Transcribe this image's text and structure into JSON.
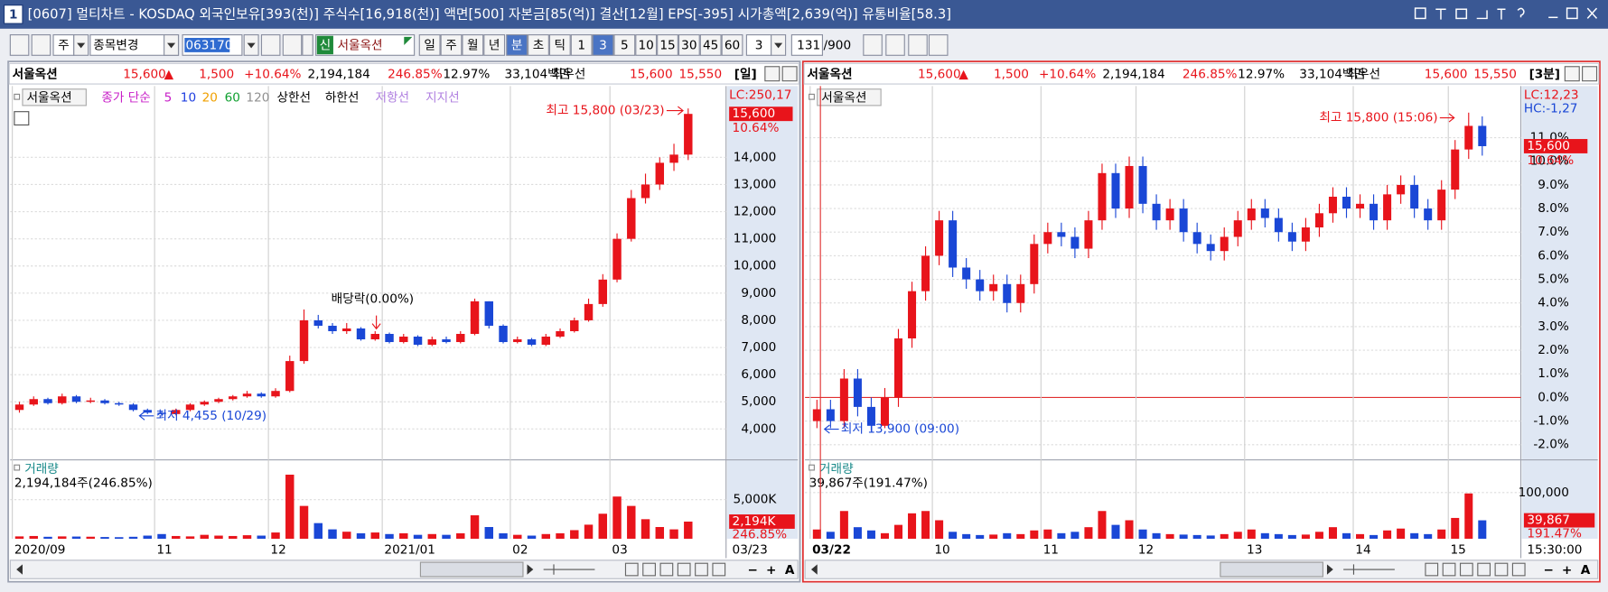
{
  "title_bar": {
    "number": "1",
    "text": "[0607] 멀티차트 - KOSDAQ 외국인보유[393(천)] 주식수[16,918(천)] 액면[500] 자본금[85(억)] 결산[12월] EPS[-395] 시가총액[2,639(억)] 유통비율[58.3]"
  },
  "toolbar": {
    "market": "주",
    "change": "종목변경",
    "code": "063170",
    "new": "신",
    "name": "서울옥션",
    "periods": [
      "일",
      "주",
      "월",
      "년",
      "분",
      "초",
      "틱"
    ],
    "intervals": [
      "1",
      "3",
      "5",
      "10",
      "15",
      "30",
      "45",
      "60"
    ],
    "count": "3",
    "range": "131",
    "range_total": "/900"
  },
  "panels": [
    {
      "header": {
        "name": "서울옥션",
        "price": "15,600",
        "arrow": "▲",
        "change": "1,500",
        "change_pct": "+10.64%",
        "volume": "2,194,184",
        "volume_pct": "246.85%",
        "turnover": "12.97%",
        "amount": "33,104백만",
        "best_label": "최우선",
        "ask": "15,600",
        "bid": "15,550",
        "period": "[일]"
      },
      "legend": [
        {
          "label": "서울옥션",
          "color": "#000000"
        },
        {
          "label": "종가 단순",
          "color": "#c81ec8"
        },
        {
          "label": "5",
          "color": "#c81ec8"
        },
        {
          "label": "10",
          "color": "#2040e0"
        },
        {
          "label": "20",
          "color": "#f0a000"
        },
        {
          "label": "60",
          "color": "#10a030"
        },
        {
          "label": "120",
          "color": "#909090"
        },
        {
          "label": "상한선",
          "color": "#000000"
        },
        {
          "label": "하한선",
          "color": "#000000"
        },
        {
          "label": "저항선",
          "color": "#b080e0"
        },
        {
          "label": "지지선",
          "color": "#b080e0"
        }
      ],
      "annotations": {
        "high": "최고 15,800 (03/23)",
        "low": "최저 4,455 (10/29)",
        "dividend": "배당락(0.00%)"
      },
      "axis": {
        "info": [
          "LC:250,17"
        ],
        "price": "15,600",
        "change": "10.64%",
        "end_label": "03/23"
      },
      "chart_data": {
        "type": "candlestick",
        "categories": [
          "2020/09",
          null,
          null,
          null,
          null,
          null,
          null,
          null,
          null,
          null,
          "11",
          null,
          null,
          null,
          null,
          null,
          null,
          null,
          "12",
          null,
          null,
          null,
          null,
          null,
          null,
          null,
          "2021/01",
          null,
          null,
          null,
          null,
          null,
          null,
          null,
          null,
          "02",
          null,
          null,
          null,
          null,
          null,
          null,
          "03",
          null,
          null,
          null,
          null,
          null
        ],
        "open": [
          4700,
          4900,
          5100,
          4950,
          5200,
          5000,
          5050,
          4950,
          4900,
          4700,
          4600,
          4550,
          4700,
          4900,
          5000,
          5100,
          5200,
          5300,
          5200,
          5400,
          6500,
          8000,
          7800,
          7600,
          7700,
          7300,
          7500,
          7200,
          7400,
          7100,
          7300,
          7200,
          7500,
          8700,
          7800,
          7200,
          7300,
          7100,
          7400,
          7600,
          8000,
          8600,
          9500,
          11000,
          12500,
          13000,
          13800,
          14100
        ],
        "high": [
          5000,
          5200,
          5150,
          5300,
          5250,
          5150,
          5100,
          5000,
          4950,
          4750,
          4650,
          4750,
          4950,
          5050,
          5150,
          5250,
          5400,
          5350,
          5500,
          6700,
          8400,
          8200,
          7900,
          7900,
          7750,
          7600,
          7550,
          7500,
          7450,
          7400,
          7400,
          7600,
          8800,
          8700,
          7850,
          7400,
          7350,
          7500,
          7700,
          8100,
          8800,
          9700,
          11200,
          12800,
          13400,
          14000,
          14500,
          15800
        ],
        "low": [
          4600,
          4850,
          4900,
          4900,
          4950,
          4950,
          4900,
          4850,
          4650,
          4550,
          4455,
          4500,
          4650,
          4850,
          4950,
          5050,
          5150,
          5150,
          5150,
          5350,
          6400,
          7700,
          7500,
          7500,
          7250,
          7250,
          7150,
          7150,
          7050,
          7050,
          7150,
          7150,
          7450,
          7700,
          7150,
          7150,
          7050,
          7050,
          7350,
          7550,
          7950,
          8500,
          9400,
          10900,
          12300,
          12800,
          13500,
          13900
        ],
        "close": [
          4900,
          5100,
          4950,
          5200,
          5000,
          5050,
          4950,
          4900,
          4700,
          4600,
          4550,
          4700,
          4900,
          5000,
          5100,
          5200,
          5300,
          5200,
          5400,
          6500,
          8000,
          7800,
          7600,
          7700,
          7300,
          7500,
          7200,
          7400,
          7100,
          7300,
          7200,
          7500,
          8700,
          7800,
          7200,
          7300,
          7100,
          7400,
          7600,
          8000,
          8600,
          9500,
          11000,
          12500,
          13000,
          13800,
          14100,
          15600
        ],
        "up_color": "#e8141b",
        "down_color": "#1a47d6",
        "ylim": [
          2900,
          16550
        ],
        "yticks": [
          {
            "value": 4000,
            "label": "4,000"
          },
          {
            "value": 5000,
            "label": "5,000"
          },
          {
            "value": 6000,
            "label": "6,000"
          },
          {
            "value": 7000,
            "label": "7,000"
          },
          {
            "value": 8000,
            "label": "8,000"
          },
          {
            "value": 9000,
            "label": "9,000"
          },
          {
            "value": 10000,
            "label": "10,000"
          },
          {
            "value": 11000,
            "label": "11,000"
          },
          {
            "value": 12000,
            "label": "12,000"
          },
          {
            "value": 13000,
            "label": "13,000"
          },
          {
            "value": 14000,
            "label": "14,000"
          }
        ],
        "grid": true
      },
      "volume_chart": {
        "type": "bar",
        "title": "거래량",
        "summary": "2,194,184주(246.85%)",
        "values": [
          300,
          350,
          250,
          300,
          280,
          260,
          220,
          200,
          250,
          400,
          600,
          350,
          300,
          500,
          400,
          350,
          450,
          400,
          800,
          8200,
          4200,
          2000,
          1200,
          900,
          700,
          800,
          600,
          700,
          500,
          600,
          500,
          700,
          3000,
          1500,
          700,
          500,
          400,
          600,
          700,
          1100,
          1800,
          3200,
          5400,
          4200,
          2500,
          1500,
          1200,
          2194
        ],
        "ylim": [
          0,
          9700
        ],
        "yticks": [
          {
            "value": 5000,
            "label": "5,000K"
          }
        ],
        "current_label": "2,194K",
        "current_pct": "246.85%"
      },
      "tools": [
        "−",
        "+",
        "A"
      ]
    },
    {
      "header": {
        "name": "서울옥션",
        "price": "15,600",
        "arrow": "▲",
        "change": "1,500",
        "change_pct": "+10.64%",
        "volume": "2,194,184",
        "volume_pct": "246.85%",
        "turnover": "12.97%",
        "amount": "33,104백만",
        "best_label": "최우선",
        "ask": "15,600",
        "bid": "15,550",
        "period": "[3분]"
      },
      "legend": [
        {
          "label": "서울옥션",
          "color": "#000000"
        }
      ],
      "annotations": {
        "high": "최고 15,800 (15:06)",
        "low": "최저 13,900 (09:00)"
      },
      "axis": {
        "info": [
          "LC:12,23",
          "HC:-1,27"
        ],
        "price": "15,600",
        "change": "10.64%",
        "end_label": "15:30:00"
      },
      "chart_data": {
        "type": "candlestick",
        "categories": [
          "03/22",
          null,
          null,
          null,
          null,
          null,
          null,
          null,
          null,
          "10",
          null,
          null,
          null,
          null,
          null,
          null,
          null,
          "11",
          null,
          null,
          null,
          null,
          null,
          null,
          "12",
          null,
          null,
          null,
          null,
          null,
          null,
          null,
          "13",
          null,
          null,
          null,
          null,
          null,
          null,
          null,
          "14",
          null,
          null,
          null,
          null,
          null,
          null,
          "15",
          null,
          null
        ],
        "open": [
          -1.0,
          -0.5,
          -1.0,
          0.8,
          -0.4,
          -1.2,
          0.0,
          2.5,
          4.5,
          6.0,
          7.5,
          5.5,
          5.0,
          4.5,
          4.8,
          4.0,
          4.8,
          6.5,
          7.0,
          6.8,
          6.3,
          7.5,
          9.5,
          8.0,
          9.8,
          8.2,
          7.5,
          8.0,
          7.0,
          6.5,
          6.2,
          6.8,
          7.5,
          8.0,
          7.6,
          7.0,
          6.6,
          7.2,
          7.8,
          8.5,
          8.0,
          8.2,
          7.5,
          8.6,
          9.0,
          8.0,
          7.5,
          8.8,
          10.5,
          11.5
        ],
        "high": [
          -0.1,
          -0.1,
          1.2,
          1.2,
          0.0,
          0.4,
          2.9,
          4.9,
          6.4,
          7.9,
          7.9,
          5.9,
          5.4,
          5.2,
          5.2,
          5.2,
          6.9,
          7.4,
          7.4,
          7.2,
          7.9,
          9.9,
          9.9,
          10.2,
          10.2,
          8.6,
          8.4,
          8.4,
          7.4,
          6.9,
          7.2,
          7.9,
          8.4,
          8.4,
          8.0,
          7.4,
          7.6,
          8.2,
          8.9,
          8.9,
          8.6,
          8.6,
          9.0,
          9.4,
          9.4,
          8.4,
          9.2,
          10.9,
          12.06,
          11.9
        ],
        "low": [
          -1.3,
          -1.3,
          -1.3,
          -0.8,
          -1.42,
          -1.3,
          -0.4,
          2.1,
          4.1,
          5.6,
          5.1,
          4.6,
          4.1,
          4.1,
          3.6,
          3.6,
          4.4,
          6.1,
          6.4,
          5.9,
          5.9,
          7.1,
          7.6,
          7.6,
          7.8,
          7.1,
          7.1,
          6.6,
          6.1,
          5.8,
          5.8,
          6.4,
          7.1,
          7.2,
          6.6,
          6.2,
          6.2,
          6.8,
          7.4,
          7.6,
          7.6,
          7.1,
          7.1,
          8.2,
          7.6,
          7.1,
          7.1,
          8.4,
          10.1,
          10.24
        ],
        "close": [
          -0.5,
          -1.0,
          0.8,
          -0.4,
          -1.2,
          0.0,
          2.5,
          4.5,
          6.0,
          7.5,
          5.5,
          5.0,
          4.5,
          4.8,
          4.0,
          4.8,
          6.5,
          7.0,
          6.8,
          6.3,
          7.5,
          9.5,
          8.0,
          9.8,
          8.2,
          7.5,
          8.0,
          7.0,
          6.5,
          6.2,
          6.8,
          7.5,
          8.0,
          7.6,
          7.0,
          6.6,
          7.2,
          7.8,
          8.5,
          8.0,
          8.2,
          7.5,
          8.6,
          9.0,
          8.0,
          7.5,
          8.8,
          10.5,
          11.5,
          10.64
        ],
        "up_color": "#e8141b",
        "down_color": "#1a47d6",
        "ylim": [
          -2.6,
          13.1
        ],
        "yticks": [
          {
            "value": -2,
            "label": "-2.0%"
          },
          {
            "value": -1,
            "label": "-1.0%"
          },
          {
            "value": 0,
            "label": "0.0%"
          },
          {
            "value": 1,
            "label": "1.0%"
          },
          {
            "value": 2,
            "label": "2.0%"
          },
          {
            "value": 3,
            "label": "3.0%"
          },
          {
            "value": 4,
            "label": "4.0%"
          },
          {
            "value": 5,
            "label": "5.0%"
          },
          {
            "value": 6,
            "label": "6.0%"
          },
          {
            "value": 7,
            "label": "7.0%"
          },
          {
            "value": 8,
            "label": "8.0%"
          },
          {
            "value": 9,
            "label": "9.0%"
          },
          {
            "value": 10,
            "label": "10.0%"
          },
          {
            "value": 11,
            "label": "11.0%"
          }
        ],
        "grid": true
      },
      "volume_chart": {
        "type": "bar",
        "title": "거래량",
        "summary": "39,867주(191.47%)",
        "values": [
          20000,
          15000,
          60000,
          25000,
          18000,
          12000,
          30000,
          55000,
          60000,
          40000,
          15000,
          10000,
          8000,
          9000,
          12000,
          10000,
          18000,
          20000,
          12000,
          15000,
          25000,
          60000,
          30000,
          40000,
          20000,
          12000,
          10000,
          9000,
          8000,
          7000,
          10000,
          15000,
          20000,
          12000,
          10000,
          8000,
          9000,
          15000,
          25000,
          12000,
          10000,
          8000,
          18000,
          22000,
          12000,
          10000,
          20000,
          45000,
          98000,
          39867
        ],
        "ylim": [
          0,
          164000
        ],
        "yticks": [
          {
            "value": 100000,
            "label": "100,000"
          }
        ],
        "current_label": "39,867",
        "current_pct": "191.47%"
      },
      "tools": [
        "−",
        "+",
        "A"
      ]
    }
  ]
}
